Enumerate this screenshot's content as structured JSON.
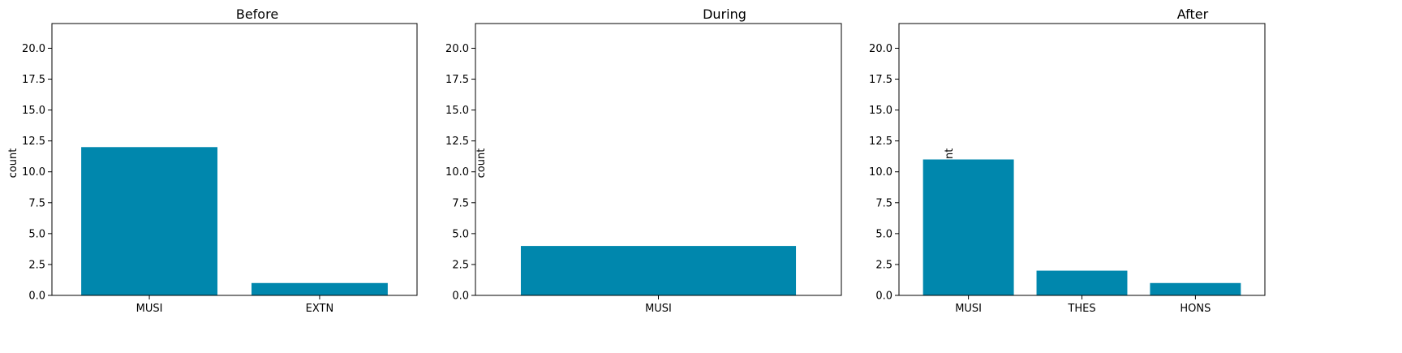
{
  "chart_data": [
    {
      "type": "bar",
      "title": "Before",
      "xlabel": "",
      "ylabel": "count",
      "categories": [
        "MUSI",
        "EXTN"
      ],
      "values": [
        12,
        1
      ],
      "ylim": [
        0,
        22
      ],
      "yticks": [
        0.0,
        2.5,
        5.0,
        7.5,
        10.0,
        12.5,
        15.0,
        17.5,
        20.0
      ],
      "ytick_labels": [
        "0.0",
        "2.5",
        "5.0",
        "7.5",
        "10.0",
        "12.5",
        "15.0",
        "17.5",
        "20.0"
      ],
      "grid": false,
      "bar_color": "#0087ad"
    },
    {
      "type": "bar",
      "title": "During",
      "xlabel": "",
      "ylabel": "count",
      "categories": [
        "MUSI"
      ],
      "values": [
        4
      ],
      "ylim": [
        0,
        22
      ],
      "yticks": [
        0.0,
        2.5,
        5.0,
        7.5,
        10.0,
        12.5,
        15.0,
        17.5,
        20.0
      ],
      "ytick_labels": [
        "0.0",
        "2.5",
        "5.0",
        "7.5",
        "10.0",
        "12.5",
        "15.0",
        "17.5",
        "20.0"
      ],
      "grid": false,
      "bar_color": "#0087ad"
    },
    {
      "type": "bar",
      "title": "After",
      "xlabel": "",
      "ylabel": "count",
      "categories": [
        "MUSI",
        "THES",
        "HONS"
      ],
      "values": [
        11,
        2,
        1
      ],
      "ylim": [
        0,
        22
      ],
      "yticks": [
        0.0,
        2.5,
        5.0,
        7.5,
        10.0,
        12.5,
        15.0,
        17.5,
        20.0
      ],
      "ytick_labels": [
        "0.0",
        "2.5",
        "5.0",
        "7.5",
        "10.0",
        "12.5",
        "15.0",
        "17.5",
        "20.0"
      ],
      "grid": false,
      "bar_color": "#0087ad"
    }
  ]
}
